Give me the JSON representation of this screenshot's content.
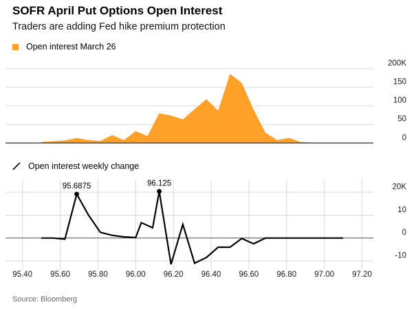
{
  "header": {
    "title": "SOFR April Put Options Open Interest",
    "subtitle": "Traders are adding Fed hike premium protection"
  },
  "footer": {
    "source": "Source: Bloomberg"
  },
  "colors": {
    "area_orange": "#FFA028",
    "line_black": "#000000",
    "grid_light": "#d9d9d9",
    "axis_dark": "#4d4d4d",
    "tick_text": "#1a1a1a",
    "source_text": "#696969"
  },
  "x_axis": {
    "xlim": [
      95.31,
      97.26
    ],
    "ticks": [
      95.4,
      95.6,
      95.8,
      96.0,
      96.2,
      96.4,
      96.6,
      96.8,
      97.0,
      97.2
    ],
    "tick_labels": [
      "95.40",
      "95.60",
      "95.80",
      "96.00",
      "96.20",
      "96.40",
      "96.60",
      "96.80",
      "97.00",
      "97.20"
    ]
  },
  "chart_data": [
    {
      "id": "open_interest",
      "type": "area",
      "legend": "Open interest March 26",
      "color": "#FFA028",
      "unit": "K",
      "grid": "horizontal",
      "ylim": [
        0,
        226
      ],
      "yticks": [
        0,
        50,
        100,
        150,
        200
      ],
      "ytick_labels": [
        "0",
        "50",
        "100",
        "150",
        "200K"
      ],
      "x": [
        95.5,
        95.5625,
        95.625,
        95.6875,
        95.75,
        95.8125,
        95.875,
        95.9375,
        96.0,
        96.0625,
        96.125,
        96.1875,
        96.25,
        96.3125,
        96.375,
        96.4375,
        96.5,
        96.5625,
        96.625,
        96.6875,
        96.75,
        96.8125,
        96.875,
        96.9375,
        97.0
      ],
      "y": [
        3,
        5,
        7,
        13.5,
        8,
        5.5,
        21,
        8,
        32,
        19,
        80,
        74,
        64,
        91,
        118,
        87,
        186,
        162,
        90,
        28,
        8,
        14,
        3,
        1.5,
        0.5
      ]
    },
    {
      "id": "weekly_change",
      "type": "line",
      "legend": "Open interest weekly change",
      "color": "#000000",
      "unit": "K",
      "grid": "both",
      "ylim": [
        -13.6,
        25.4
      ],
      "yticks": [
        -10,
        0,
        10,
        20
      ],
      "ytick_labels": [
        "-10",
        "0",
        "10",
        "20K"
      ],
      "x": [
        95.5,
        95.5625,
        95.625,
        95.6875,
        95.75,
        95.8125,
        95.875,
        95.9375,
        96.0,
        96.03,
        96.09,
        96.125,
        96.1875,
        96.25,
        96.3125,
        96.375,
        96.4375,
        96.5,
        96.5625,
        96.625,
        96.6875,
        96.75,
        96.8125,
        96.875,
        96.9375,
        97.0,
        97.0625,
        97.1
      ],
      "y": [
        0,
        0,
        -0.5,
        19.2,
        10,
        2.5,
        1.2,
        0.5,
        0.2,
        6.7,
        4.5,
        20.4,
        -11.5,
        6,
        -11,
        -8.5,
        -4,
        -4,
        -0.2,
        -2.5,
        0,
        0,
        0,
        0,
        0,
        0,
        0,
        0
      ],
      "annotations": [
        {
          "x": 95.6875,
          "y": 19.2,
          "label": "95.6875"
        },
        {
          "x": 96.125,
          "y": 20.4,
          "label": "96.125"
        }
      ]
    }
  ]
}
